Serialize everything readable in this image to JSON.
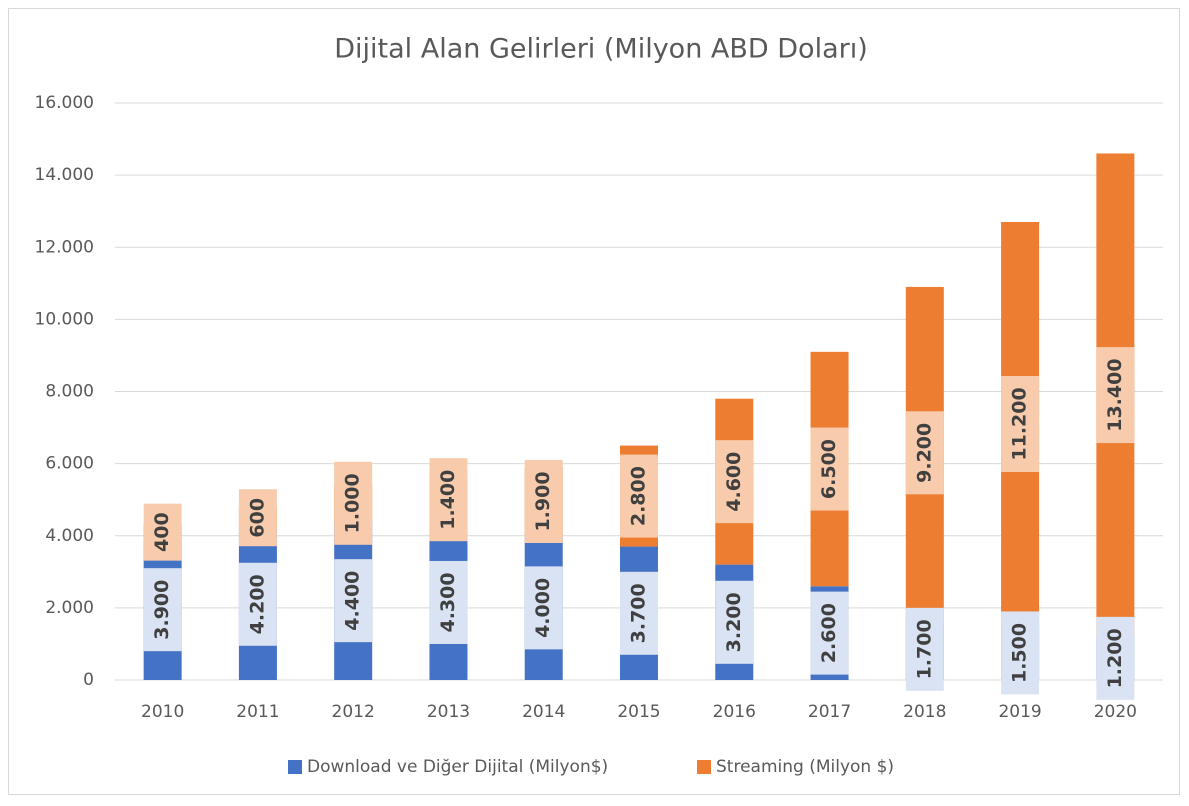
{
  "chart_data": {
    "type": "stacked_bar",
    "title": "Dijital Alan Gelirleri (Milyon ABD Doları)",
    "categories": [
      "2010",
      "2011",
      "2012",
      "2013",
      "2014",
      "2015",
      "2016",
      "2017",
      "2018",
      "2019",
      "2020"
    ],
    "series": [
      {
        "name": "Download ve Diğer Dijital (Milyon$)",
        "color": "#4472c4",
        "values": [
          3900,
          4200,
          4400,
          4300,
          4000,
          3700,
          3200,
          2600,
          1700,
          1500,
          1200
        ],
        "value_labels": [
          "3.900",
          "4.200",
          "4.400",
          "4.300",
          "4.000",
          "3.700",
          "3.200",
          "2.600",
          "1.700",
          "1.500",
          "1.200"
        ]
      },
      {
        "name": "Streaming (Milyon $)",
        "color": "#ed7d31",
        "values": [
          400,
          600,
          1000,
          1400,
          1900,
          2800,
          4600,
          6500,
          9200,
          11200,
          13400
        ],
        "value_labels": [
          "400",
          "600",
          "1.000",
          "1.400",
          "1.900",
          "2.800",
          "4.600",
          "6.500",
          "9.200",
          "11.200",
          "13.400"
        ]
      }
    ],
    "ylim": [
      0,
      16000
    ],
    "yticks": [
      0,
      {
        "value": 2000,
        "label": "2.000"
      },
      {
        "value": 4000,
        "label": "4.000"
      },
      {
        "value": 6000,
        "label": "6.000"
      },
      {
        "value": 8000,
        "label": "8.000"
      },
      {
        "value": 10000,
        "label": "10.000"
      },
      {
        "value": 12000,
        "label": "12.000"
      },
      {
        "value": 14000,
        "label": "14.000"
      },
      {
        "value": 16000,
        "label": "16.000"
      }
    ],
    "grid": true,
    "legend": "bottom"
  }
}
